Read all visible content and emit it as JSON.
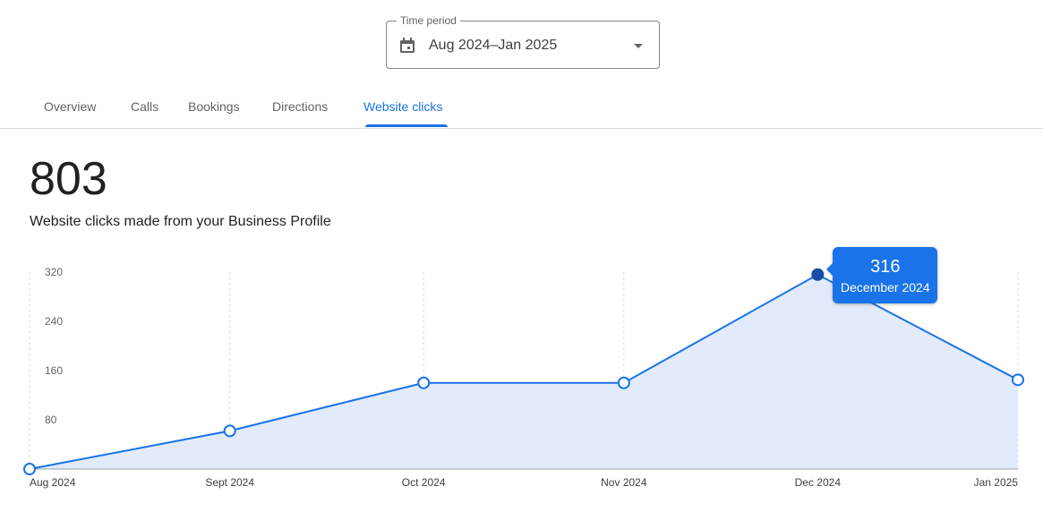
{
  "time_period": {
    "label": "Time period",
    "value": "Aug 2024–Jan 2025",
    "icon": "calendar-icon"
  },
  "tabs": [
    {
      "label": "Overview",
      "active": false
    },
    {
      "label": "Calls",
      "active": false
    },
    {
      "label": "Bookings",
      "active": false
    },
    {
      "label": "Directions",
      "active": false
    },
    {
      "label": "Website clicks",
      "active": true
    }
  ],
  "summary": {
    "total": "803",
    "description": "Website clicks made from your Business Profile"
  },
  "tooltip": {
    "value": "316",
    "label": "December 2024"
  },
  "colors": {
    "accent": "#1a73e8",
    "fill": "#e2ebfb",
    "selected_point": "#174ea6"
  },
  "chart_data": {
    "type": "area",
    "x": [
      "2024-08-01",
      "2024-09-01",
      "2024-10-01",
      "2024-11-01",
      "2024-12-01",
      "2025-01-01"
    ],
    "x_tick_labels": [
      "Aug 2024",
      "Sept 2024",
      "Oct 2024",
      "Nov 2024",
      "Dec 2024",
      "Jan 2025"
    ],
    "values": [
      0,
      62,
      140,
      140,
      316,
      145
    ],
    "y_ticks": [
      80,
      160,
      240,
      320
    ],
    "ylim": [
      0,
      320
    ],
    "selected_index": 4,
    "grid": "vertical dashed"
  }
}
